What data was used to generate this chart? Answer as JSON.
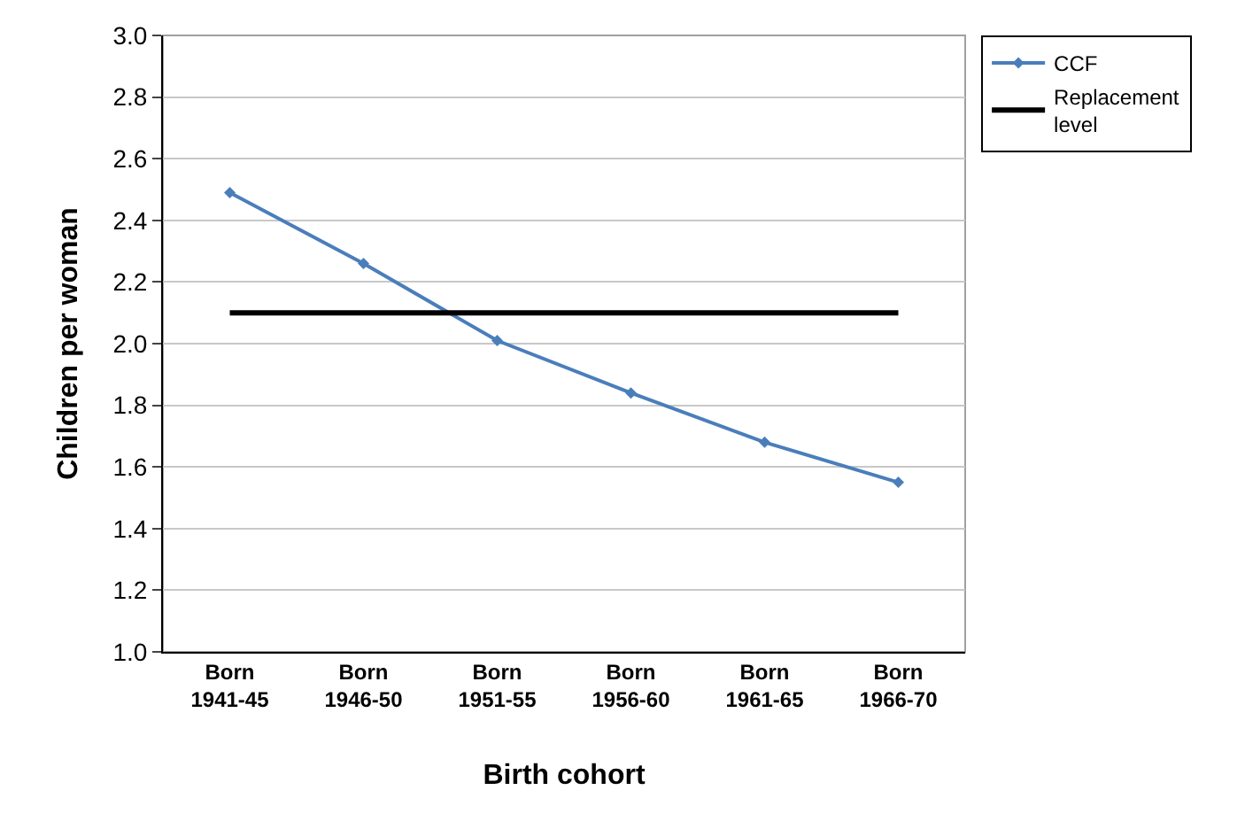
{
  "chart_data": {
    "type": "line",
    "xlabel": "Birth cohort",
    "ylabel": "Children per woman",
    "categories": [
      "Born\n1941-45",
      "Born\n1946-50",
      "Born\n1951-55",
      "Born\n1956-60",
      "Born\n1961-65",
      "Born\n1966-70"
    ],
    "series": [
      {
        "name": "CCF",
        "color": "#4a7ebb",
        "values": [
          2.49,
          2.26,
          2.01,
          1.84,
          1.68,
          1.55
        ],
        "marker": "diamond"
      },
      {
        "name": "Replacement\nlevel",
        "color": "#000000",
        "values": [
          2.1,
          2.1,
          2.1,
          2.1,
          2.1,
          2.1
        ],
        "marker": "none"
      }
    ],
    "ylim": [
      1.0,
      3.0
    ],
    "yticks": [
      {
        "value": 1.0,
        "label": "1.0"
      },
      {
        "value": 1.2,
        "label": "1.2"
      },
      {
        "value": 1.4,
        "label": "1.4"
      },
      {
        "value": 1.6,
        "label": "1.6"
      },
      {
        "value": 1.8,
        "label": "1.8"
      },
      {
        "value": 2.0,
        "label": "2.0"
      },
      {
        "value": 2.2,
        "label": "2.2"
      },
      {
        "value": 2.4,
        "label": "2.4"
      },
      {
        "value": 2.6,
        "label": "2.6"
      },
      {
        "value": 2.8,
        "label": "2.8"
      },
      {
        "value": 3.0,
        "label": "3.0"
      }
    ],
    "grid": "y",
    "legend": "top right",
    "line_style": "solid"
  }
}
